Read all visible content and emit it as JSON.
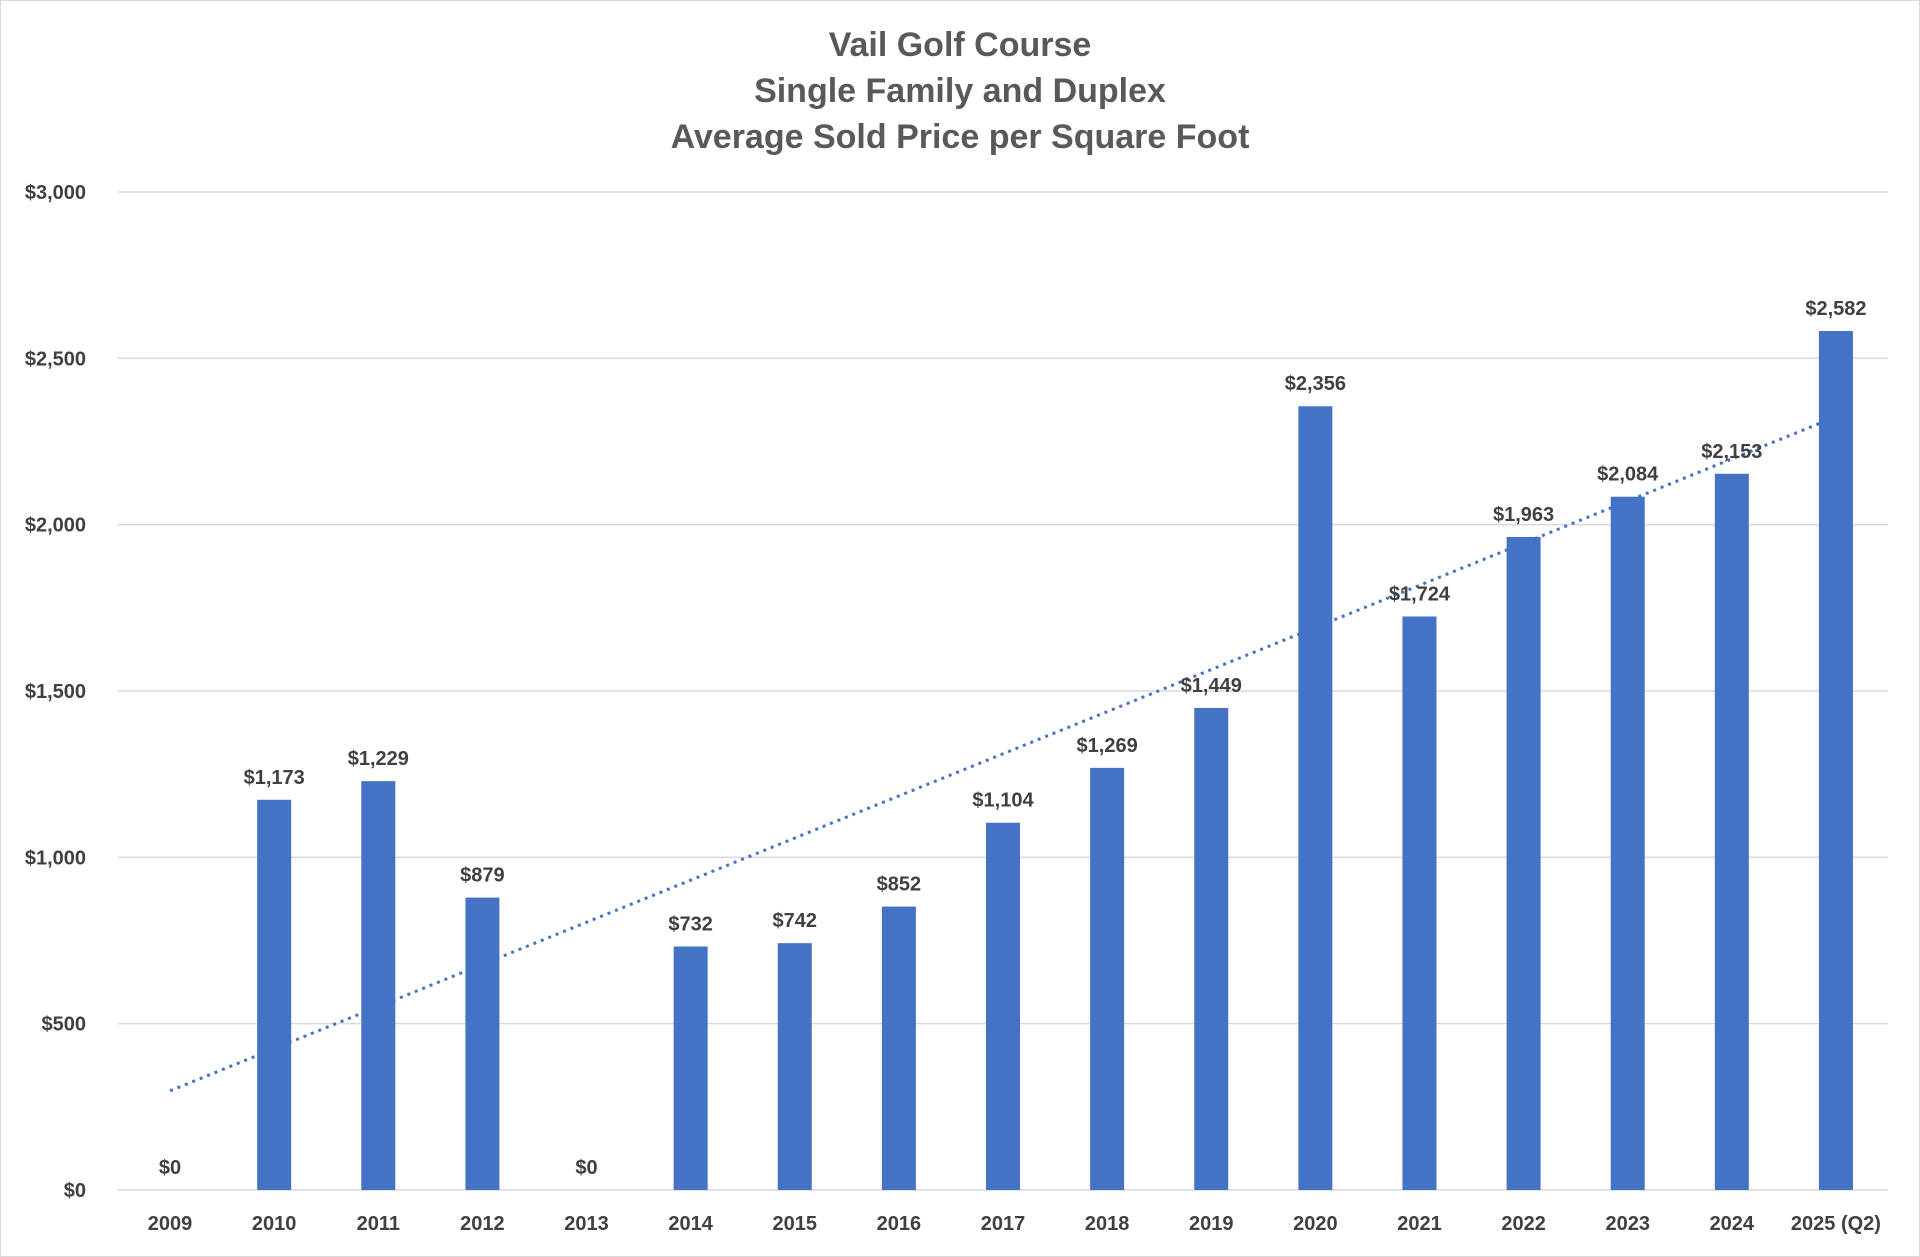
{
  "chart_data": {
    "type": "bar",
    "title": [
      "Vail Golf Course",
      "Single Family and Duplex",
      "Average Sold Price per Square Foot"
    ],
    "xlabel": "",
    "ylabel": "",
    "categories": [
      "2009",
      "2010",
      "2011",
      "2012",
      "2013",
      "2014",
      "2015",
      "2016",
      "2017",
      "2018",
      "2019",
      "2020",
      "2021",
      "2022",
      "2023",
      "2024",
      "2025 (Q2)"
    ],
    "series": [
      {
        "values": [
          0,
          1173,
          1229,
          879,
          0,
          732,
          742,
          852,
          1104,
          1269,
          1449,
          2356,
          1724,
          1963,
          2084,
          2153,
          2582
        ],
        "data_labels": [
          "$0",
          "$1,173",
          "$1,229",
          "$879",
          "$0",
          "$732",
          "$742",
          "$852",
          "$1,104",
          "$1,269",
          "$1,449",
          "$2,356",
          "$1,724",
          "$1,963",
          "$2,084",
          "$2,153",
          "$2,582"
        ],
        "color": "#4472c4"
      }
    ],
    "trendline": {
      "type": "linear",
      "style": "dotted",
      "color": "#4472c4"
    },
    "ylim": [
      0,
      3000
    ],
    "yticks": [
      0,
      500,
      1000,
      1500,
      2000,
      2500,
      3000
    ],
    "ytick_labels": [
      "$0",
      "$500",
      "$1,000",
      "$1,500",
      "$2,000",
      "$2,500",
      "$3,000"
    ],
    "grid": true,
    "legend": "none"
  }
}
